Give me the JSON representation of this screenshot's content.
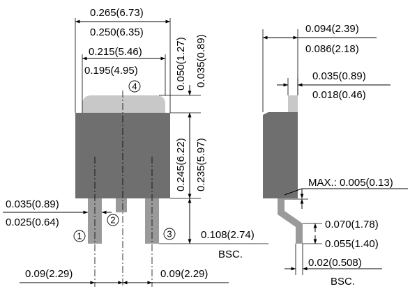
{
  "colors": {
    "body": "#6f6f6f",
    "tab": "#c8c8c8",
    "lead": "#9a9a9a",
    "line": "#000000",
    "background": "#ffffff"
  },
  "front_view": {
    "overall_width": {
      "max": "0.265(6.73)",
      "min": "0.250(6.35)"
    },
    "tab_width": {
      "max": "0.215(5.46)",
      "min": "0.195(4.95)"
    },
    "tab_height": {
      "max": "0.050(1.27)",
      "min": "0.035(0.89)"
    },
    "body_height": {
      "max": "0.245(6.22)",
      "min": "0.235(5.97)"
    },
    "lead_width": {
      "max": "0.035(0.89)",
      "min": "0.025(0.64)"
    },
    "lead_length": {
      "value": "0.108(2.74)",
      "note": "BSC."
    },
    "lead_pitch": {
      "left": "0.09(2.29)",
      "right": "0.09(2.29)"
    },
    "pins": [
      "1",
      "2",
      "3",
      "4"
    ]
  },
  "side_view": {
    "overall_height": {
      "max": "0.094(2.39)",
      "min": "0.086(2.18)"
    },
    "tab_thickness": {
      "max": "0.035(0.89)",
      "min": "0.018(0.46)"
    },
    "standoff": {
      "label": "MAX.: 0.005(0.13)"
    },
    "lead_offset": {
      "max": "0.070(1.78)",
      "min": "0.055(1.40)"
    },
    "lead_thickness": {
      "value": "0.02(0.508)",
      "note": "BSC."
    }
  }
}
